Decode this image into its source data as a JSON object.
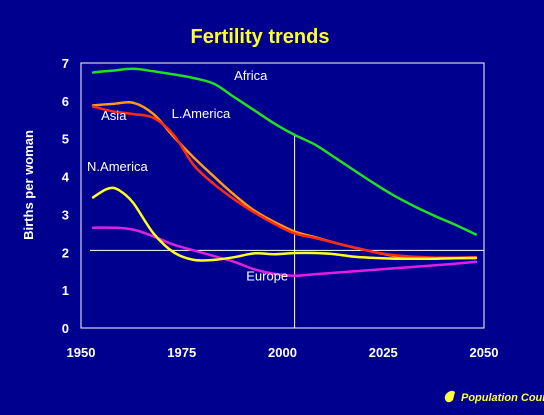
{
  "chart_data": {
    "type": "line",
    "title": "Fertility trends",
    "xlabel": "",
    "ylabel": "Births per woman",
    "xlim": [
      1950,
      2050
    ],
    "ylim": [
      0,
      7
    ],
    "xticks": [
      1950,
      1975,
      2000,
      2025,
      2050
    ],
    "yticks": [
      0,
      1,
      2,
      3,
      4,
      5,
      6,
      7
    ],
    "grid": false,
    "legend": "none",
    "reference_lines": {
      "horizontal_y": 2.05,
      "vertical_x": 2003
    },
    "series": [
      {
        "name": "Africa",
        "color": "#20e020",
        "x": [
          1953,
          1958,
          1963,
          1968,
          1973,
          1978,
          1983,
          1988,
          1993,
          1998,
          2003,
          2008,
          2013,
          2018,
          2023,
          2028,
          2033,
          2038,
          2043,
          2048
        ],
        "y": [
          6.75,
          6.8,
          6.85,
          6.78,
          6.7,
          6.6,
          6.45,
          6.1,
          5.75,
          5.4,
          5.1,
          4.85,
          4.5,
          4.15,
          3.8,
          3.48,
          3.2,
          2.95,
          2.72,
          2.47
        ]
      },
      {
        "name": "Asia",
        "color": "#ff2a10",
        "x": [
          1953,
          1958,
          1963,
          1968,
          1973,
          1978,
          1983,
          1988,
          1993,
          1998,
          2003,
          2008,
          2013,
          2018,
          2023,
          2028,
          2033,
          2038,
          2043,
          2048
        ],
        "y": [
          5.85,
          5.72,
          5.65,
          5.55,
          5.1,
          4.3,
          3.8,
          3.4,
          3.05,
          2.75,
          2.5,
          2.38,
          2.25,
          2.12,
          2.0,
          1.92,
          1.88,
          1.86,
          1.86,
          1.87
        ]
      },
      {
        "name": "L.America",
        "color": "#ff9a1a",
        "x": [
          1953,
          1958,
          1963,
          1968,
          1973,
          1978,
          1983,
          1988,
          1993,
          1998,
          2003,
          2008,
          2013,
          2018,
          2023,
          2028,
          2033,
          2038,
          2043,
          2048
        ],
        "y": [
          5.88,
          5.92,
          5.95,
          5.65,
          5.05,
          4.5,
          4.0,
          3.52,
          3.1,
          2.8,
          2.55,
          2.4,
          2.25,
          2.12,
          2.0,
          1.9,
          1.86,
          1.85,
          1.85,
          1.85
        ]
      },
      {
        "name": "N.America",
        "color": "#ffff20",
        "x": [
          1953,
          1956,
          1958,
          1960,
          1963,
          1968,
          1973,
          1978,
          1983,
          1988,
          1993,
          1998,
          2003,
          2008,
          2013,
          2018,
          2023,
          2028,
          2033,
          2038,
          2043,
          2048
        ],
        "y": [
          3.45,
          3.65,
          3.7,
          3.6,
          3.3,
          2.5,
          2.0,
          1.8,
          1.8,
          1.87,
          1.97,
          1.95,
          1.98,
          1.98,
          1.95,
          1.88,
          1.85,
          1.83,
          1.83,
          1.83,
          1.84,
          1.85
        ]
      },
      {
        "name": "Europe",
        "color": "#e020e0",
        "x": [
          1953,
          1958,
          1963,
          1968,
          1973,
          1978,
          1983,
          1988,
          1993,
          1998,
          2003,
          2008,
          2013,
          2018,
          2023,
          2028,
          2033,
          2038,
          2043,
          2048
        ],
        "y": [
          2.65,
          2.65,
          2.6,
          2.42,
          2.2,
          2.05,
          1.9,
          1.75,
          1.55,
          1.43,
          1.38,
          1.42,
          1.46,
          1.5,
          1.54,
          1.58,
          1.62,
          1.66,
          1.7,
          1.75
        ]
      }
    ],
    "annotations": [
      {
        "text": "Africa",
        "x": 1988,
        "y": 6.55
      },
      {
        "text": "Asia",
        "x": 1955,
        "y": 5.5
      },
      {
        "text": "L.America",
        "x": 1972.5,
        "y": 5.55
      },
      {
        "text": "N.America",
        "x": 1951.5,
        "y": 4.15
      },
      {
        "text": "Europe",
        "x": 1991,
        "y": 1.25
      }
    ]
  },
  "branding": {
    "logo_text": "Population Council",
    "logo_color": "#ffff40"
  },
  "colors": {
    "background": "#00008f",
    "title": "#ffff20",
    "text": "#ffffff",
    "axis": "#ffffff"
  }
}
